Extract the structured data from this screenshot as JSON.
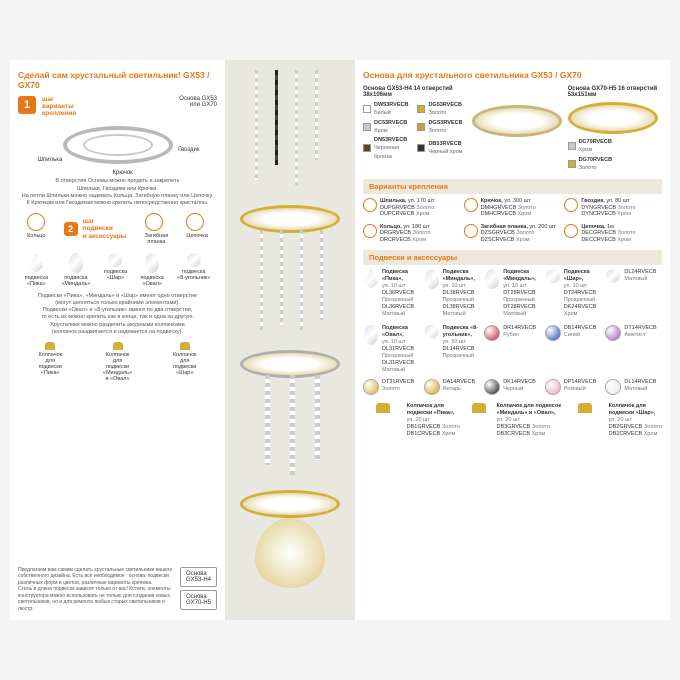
{
  "left": {
    "title": "Сделай сам хрустальный светильник! GX53 / GX70",
    "step1_num": "1",
    "step1_label": "шаг\nварианты\nкрепления",
    "base_label": "Основа GX53\nили GX70",
    "callouts": {
      "shpilka": "Шпилька",
      "kryuchok": "Крючок",
      "gvozdik": "Гвоздик",
      "kolco": "Кольцо",
      "planka": "Загибная\nпланка",
      "cepochka": "Цепочка"
    },
    "desc1": "В отверстия Основы можно продеть и закрепить\nШпильки, Гвоздики или Крючки.\nНа петли Шпильки можно надевать Кольца, Загибную планку или Цепочку.\nК Крючкам или Гвоздикам можно крепить непосредственно кристаллы.",
    "step2_num": "2",
    "step2_label": "шаг\nподвески\nи аксессуары",
    "pendants": {
      "pika": "подвеска\n«Пика»",
      "mindal": "подвеска\n«Миндаль»",
      "shar": "подвеска\n«Шар»",
      "oval": "подвеска\n«Овал»",
      "ugol": "подвеска\n«8-угольник»"
    },
    "desc2": "Подвески «Пика», «Миндаль» и «Шар» имеют одно отверстие\n(могут цепляться только крайними элементами).\nПодвески «Овал» и «8-угольник» имеют по два отверстия,\nто есть их можно крепить как в конце, так и одна за другую.\nХрусталики можно разделить ажурными колпачками\n(колпачок раздвигается и надевается на подвеску).",
    "caps": {
      "pika": "Колпачок\nдля\nподвески\n«Пика»",
      "mindal": "Колпачок\nдля\nподвески\n«Миндаль»\nи «Овал»",
      "shar": "Колпачок\nдля\nподвески\n«Шар»"
    },
    "bottom_note": "Предлагаем вам самим сделать хрустальные светильники вашего собственного дизайна. Есть все необходимое : основа, подвески различных форм и цветов, различные варианты крепежа.\nСтиль и длина подвесок зависит только от вас! Кстати, элементы конструктора можно использовать не только для создания новых светильников, но и для ремонта любых старых светильников и люстр.",
    "box1": "Основа\nGX53-H4",
    "box2": "Основа\nGX70-H5"
  },
  "right": {
    "title": "Основа для хрустального светильника GX53 / GX70",
    "base1_title": "Основа GX53-H4 14 отверстий\n38х106мм",
    "base2_title": "Основа GX70-H5 16 отверстий\n53х151мм",
    "base1_skus": [
      {
        "code": "DW53RVECB",
        "name": "Белый",
        "color": "#ffffff"
      },
      {
        "code": "DG53RVECB",
        "name": "Золото",
        "color": "#d4af37"
      },
      {
        "code": "DC53RVECB",
        "name": "Хром",
        "color": "#c8c8c8"
      },
      {
        "code": "DGS3RVECB",
        "name": "Золото",
        "color": "#c9a030"
      },
      {
        "code": "DN53RVECB",
        "name": "Черненая бронза",
        "color": "#5a4a2a"
      },
      {
        "code": "DB53RVECB",
        "name": "Черный хром",
        "color": "#333333"
      }
    ],
    "base2_skus": [
      {
        "code": "DC70RVECB",
        "name": "Хром",
        "color": "#c8c8c8"
      },
      {
        "code": "DG70RVECB",
        "name": "Золото",
        "color": "#d4af37"
      }
    ],
    "sec_mount": "Варианты крепления",
    "mounts": [
      {
        "t": "Шпилька,",
        "s": "уп. 170 шт",
        "a": "DUPGRVECB",
        "an": "Золото",
        "b": "DUPCRVECB",
        "bn": "Хром"
      },
      {
        "t": "Крючок,",
        "s": "уп. 300 шт",
        "a": "DMHGRVECB",
        "an": "Золото",
        "b": "DMHCRVECB",
        "bn": "Хром"
      },
      {
        "t": "Гвоздик,",
        "s": "уп. 80 шт",
        "a": "DYNGRVECB",
        "an": "Золото",
        "b": "DYNCRVECB",
        "bn": "Хром"
      },
      {
        "t": "Кольцо,",
        "s": "уп. 180 шт",
        "a": "DRGRVECB",
        "an": "Золото",
        "b": "DRCRVECB",
        "bn": "Хром"
      },
      {
        "t": "Загибная планка,",
        "s": "уп. 200 шт",
        "a": "DZSGRVECB",
        "an": "Золото",
        "b": "DZSCRVECB",
        "bn": "Хром"
      },
      {
        "t": "Цепочка,",
        "s": "1м",
        "a": "DECGRVECB",
        "an": "Золото",
        "b": "DECCRVECB",
        "bn": "Хром"
      }
    ],
    "sec_pend": "Подвески и аксессуары",
    "pend_row1": [
      {
        "t": "Подвеска «Пика»,",
        "s": "уп. 10 шт",
        "a": "DL36RVECB",
        "an": "Прозрачный",
        "cls": "p-drop",
        "b": "DL36RVECB",
        "bn": "Матовый"
      },
      {
        "t": "Подвеска «Миндаль»,",
        "s": "уп. 10 шт",
        "a": "DL38RVECB",
        "an": "Прозрачный",
        "cls": "p-almond",
        "b": "DL38RVECB",
        "bn": "Матовый"
      },
      {
        "t": "Подвеска «Миндаль»,",
        "s": "уп. 10 шт",
        "a": "DT28RVECB",
        "an": "Прозрачный",
        "cls": "p-almond",
        "b": "DT28RVECB",
        "bn": "Матовый"
      },
      {
        "t": "Подвеска «Шар»,",
        "s": "уп. 10 шт",
        "a": "DT24RVECB",
        "an": "Прозрачный",
        "cls": "p-ball",
        "b": "DK24RVECB",
        "bn": "Хром"
      },
      {
        "t": "",
        "s": "",
        "a": "DL24RVECB",
        "an": "Матовый",
        "cls": "p-ball",
        "b": "",
        "bn": ""
      }
    ],
    "pend_row2": [
      {
        "t": "Подвеска «Овал»,",
        "s": "уп. 10 шт",
        "a": "DL31RVECB",
        "an": "Прозрачный",
        "cls": "p-oval",
        "b": "DL31RVECB",
        "bn": "Матовый"
      },
      {
        "t": "Подвеска «8-угольник»,",
        "s": "уп. 50 шт",
        "a": "DL14RVECB",
        "an": "Прозрачный",
        "cls": "p-octa"
      },
      {
        "t": "",
        "s": "",
        "a": "DR14RVECB",
        "an": "Рубин",
        "color": "#c41e3a"
      },
      {
        "t": "",
        "s": "",
        "a": "DB14RVECB",
        "an": "Синий",
        "color": "#1e4bc4"
      },
      {
        "t": "",
        "s": "",
        "a": "DT14RVECB",
        "an": "Аметист",
        "color": "#9b59b6"
      }
    ],
    "pend_row3": [
      {
        "t": "",
        "s": "",
        "a": "DT31RVECB",
        "an": "Золото",
        "cls": "p-oval",
        "color": "#d4af37"
      },
      {
        "t": "",
        "s": "",
        "a": "DA14RVECB",
        "an": "Янтарь",
        "color": "#d4a017"
      },
      {
        "t": "",
        "s": "",
        "a": "DK14RVECB",
        "an": "Черный",
        "color": "#1a1a1a"
      },
      {
        "t": "",
        "s": "",
        "a": "DP14RVECB",
        "an": "Розовый",
        "color": "#e8a0c0"
      },
      {
        "t": "",
        "s": "",
        "a": "DL14RVECB",
        "an": "Матовый",
        "color": "#e8e8e8"
      }
    ],
    "caps_row": [
      {
        "t": "Колпачок для\nподвески «Пика»,",
        "s": "уп. 20 шт",
        "a": "DB1GRVECB",
        "an": "Золото",
        "b": "DB1CRVECB",
        "bn": "Хром"
      },
      {
        "t": "Колпачок для подвесок\n«Миндаль» и «Овал»,",
        "s": "уп. 20 шт",
        "a": "DB3GRVECB",
        "an": "Золото",
        "b": "DB3CRVECB",
        "bn": "Хром"
      },
      {
        "t": "Колпачок для\nподвески «Шар»,",
        "s": "уп. 20 шт",
        "a": "DB2GRVECB",
        "an": "Золото",
        "b": "DB2CRVECB",
        "bn": "Хром"
      }
    ]
  },
  "colors": {
    "accent": "#e67817"
  }
}
